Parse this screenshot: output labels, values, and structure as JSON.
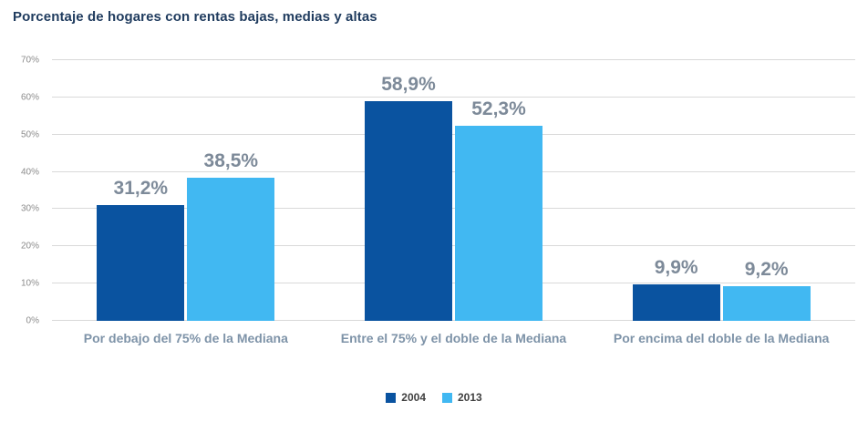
{
  "chart_data": {
    "type": "bar",
    "title": "Porcentaje de hogares con rentas bajas, medias y altas",
    "categories": [
      "Por debajo del 75% de la Mediana",
      "Entre el 75% y el doble de la Mediana",
      "Por encima del doble de la Mediana"
    ],
    "series": [
      {
        "name": "2004",
        "color": "#0A53A0",
        "values": [
          31.2,
          58.9,
          9.9
        ],
        "labels": [
          "31,2%",
          "58,9%",
          "9,9%"
        ]
      },
      {
        "name": "2013",
        "color": "#41B8F2",
        "values": [
          38.5,
          52.3,
          9.2
        ],
        "labels": [
          "38,5%",
          "52,3%",
          "9,2%"
        ]
      }
    ],
    "ylim": [
      0,
      70
    ],
    "ytick_step": 10,
    "yticks": [
      "0%",
      "10%",
      "20%",
      "30%",
      "40%",
      "50%",
      "60%",
      "70%"
    ],
    "grid": true,
    "legend_position": "bottom",
    "xlabel": "",
    "ylabel": ""
  },
  "colors": {
    "title": "#1F3B5E",
    "data_label": "#7D8A99",
    "category_label": "#7E93A8",
    "tick_label": "#8C8C8C",
    "gridline": "#D9D9D9"
  }
}
